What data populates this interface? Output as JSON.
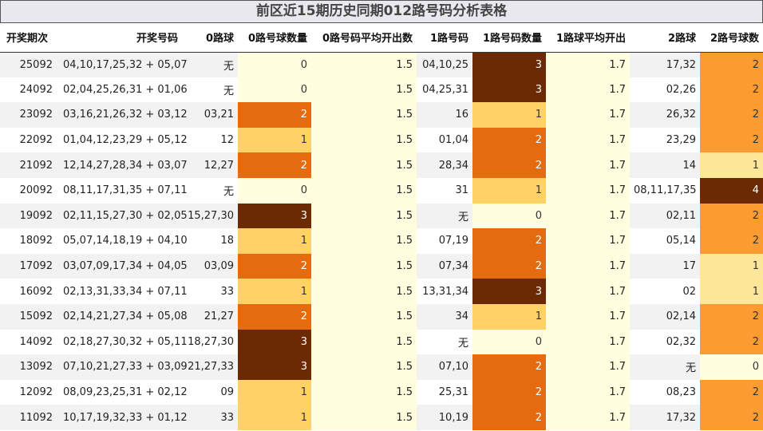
{
  "title": "前区近15期历史同期012路号码分析表格",
  "headers": [
    "开奖期次",
    "开奖号码",
    "0路球",
    "0路号球数量",
    "0路号码平均开出数",
    "1路号码",
    "1路号码数量",
    "1路球平均开出",
    "2路球",
    "2路号球数"
  ],
  "colors": {
    "count_0": "#ffffe0",
    "count_1": "#ffd166",
    "count_2": "#e56b10",
    "count_3": "#6b2a04",
    "count_4": "#6b2a04",
    "count_2_col3_2": "#fb9b30",
    "count_2_col3_1": "#ffe799",
    "text_dark": "#333333",
    "text_light": "#ffffff"
  },
  "rows": [
    {
      "period": "25092",
      "numbers": "04,10,17,25,32 + 05,07",
      "r0": "无",
      "c0": 0,
      "a0": "1.5",
      "r1": "04,10,25",
      "c1": 3,
      "a1": "1.7",
      "r2": "17,32",
      "c2": 2
    },
    {
      "period": "24092",
      "numbers": "02,04,25,26,31 + 01,06",
      "r0": "无",
      "c0": 0,
      "a0": "1.5",
      "r1": "04,25,31",
      "c1": 3,
      "a1": "1.7",
      "r2": "02,26",
      "c2": 2
    },
    {
      "period": "23092",
      "numbers": "03,16,21,26,32 + 03,12",
      "r0": "03,21",
      "c0": 2,
      "a0": "1.5",
      "r1": "16",
      "c1": 1,
      "a1": "1.7",
      "r2": "26,32",
      "c2": 2
    },
    {
      "period": "22092",
      "numbers": "01,04,12,23,29 + 05,12",
      "r0": "12",
      "c0": 1,
      "a0": "1.5",
      "r1": "01,04",
      "c1": 2,
      "a1": "1.7",
      "r2": "23,29",
      "c2": 2
    },
    {
      "period": "21092",
      "numbers": "12,14,27,28,34 + 03,07",
      "r0": "12,27",
      "c0": 2,
      "a0": "1.5",
      "r1": "28,34",
      "c1": 2,
      "a1": "1.7",
      "r2": "14",
      "c2": 1
    },
    {
      "period": "20092",
      "numbers": "08,11,17,31,35 + 07,11",
      "r0": "无",
      "c0": 0,
      "a0": "1.5",
      "r1": "31",
      "c1": 1,
      "a1": "1.7",
      "r2": "08,11,17,35",
      "c2": 4
    },
    {
      "period": "19092",
      "numbers": "02,11,15,27,30 + 02,05",
      "r0": "15,27,30",
      "c0": 3,
      "a0": "1.5",
      "r1": "无",
      "c1": 0,
      "a1": "1.7",
      "r2": "02,11",
      "c2": 2
    },
    {
      "period": "18092",
      "numbers": "05,07,14,18,19 + 04,10",
      "r0": "18",
      "c0": 1,
      "a0": "1.5",
      "r1": "07,19",
      "c1": 2,
      "a1": "1.7",
      "r2": "05,14",
      "c2": 2
    },
    {
      "period": "17092",
      "numbers": "03,07,09,17,34 + 04,05",
      "r0": "03,09",
      "c0": 2,
      "a0": "1.5",
      "r1": "07,34",
      "c1": 2,
      "a1": "1.7",
      "r2": "17",
      "c2": 1
    },
    {
      "period": "16092",
      "numbers": "02,13,31,33,34 + 07,11",
      "r0": "33",
      "c0": 1,
      "a0": "1.5",
      "r1": "13,31,34",
      "c1": 3,
      "a1": "1.7",
      "r2": "02",
      "c2": 1
    },
    {
      "period": "15092",
      "numbers": "02,14,21,27,34 + 05,08",
      "r0": "21,27",
      "c0": 2,
      "a0": "1.5",
      "r1": "34",
      "c1": 1,
      "a1": "1.7",
      "r2": "02,14",
      "c2": 2
    },
    {
      "period": "14092",
      "numbers": "02,18,27,30,32 + 05,11",
      "r0": "18,27,30",
      "c0": 3,
      "a0": "1.5",
      "r1": "无",
      "c1": 0,
      "a1": "1.7",
      "r2": "02,32",
      "c2": 2
    },
    {
      "period": "13092",
      "numbers": "07,10,21,27,33 + 03,09",
      "r0": "21,27,33",
      "c0": 3,
      "a0": "1.5",
      "r1": "07,10",
      "c1": 2,
      "a1": "1.7",
      "r2": "无",
      "c2": 0
    },
    {
      "period": "12092",
      "numbers": "08,09,23,25,31 + 02,12",
      "r0": "09",
      "c0": 1,
      "a0": "1.5",
      "r1": "25,31",
      "c1": 2,
      "a1": "1.7",
      "r2": "08,23",
      "c2": 2
    },
    {
      "period": "11092",
      "numbers": "10,17,19,32,33 + 01,12",
      "r0": "33",
      "c0": 1,
      "a0": "1.5",
      "r1": "10,19",
      "c1": 2,
      "a1": "1.7",
      "r2": "17,32",
      "c2": 2
    }
  ]
}
